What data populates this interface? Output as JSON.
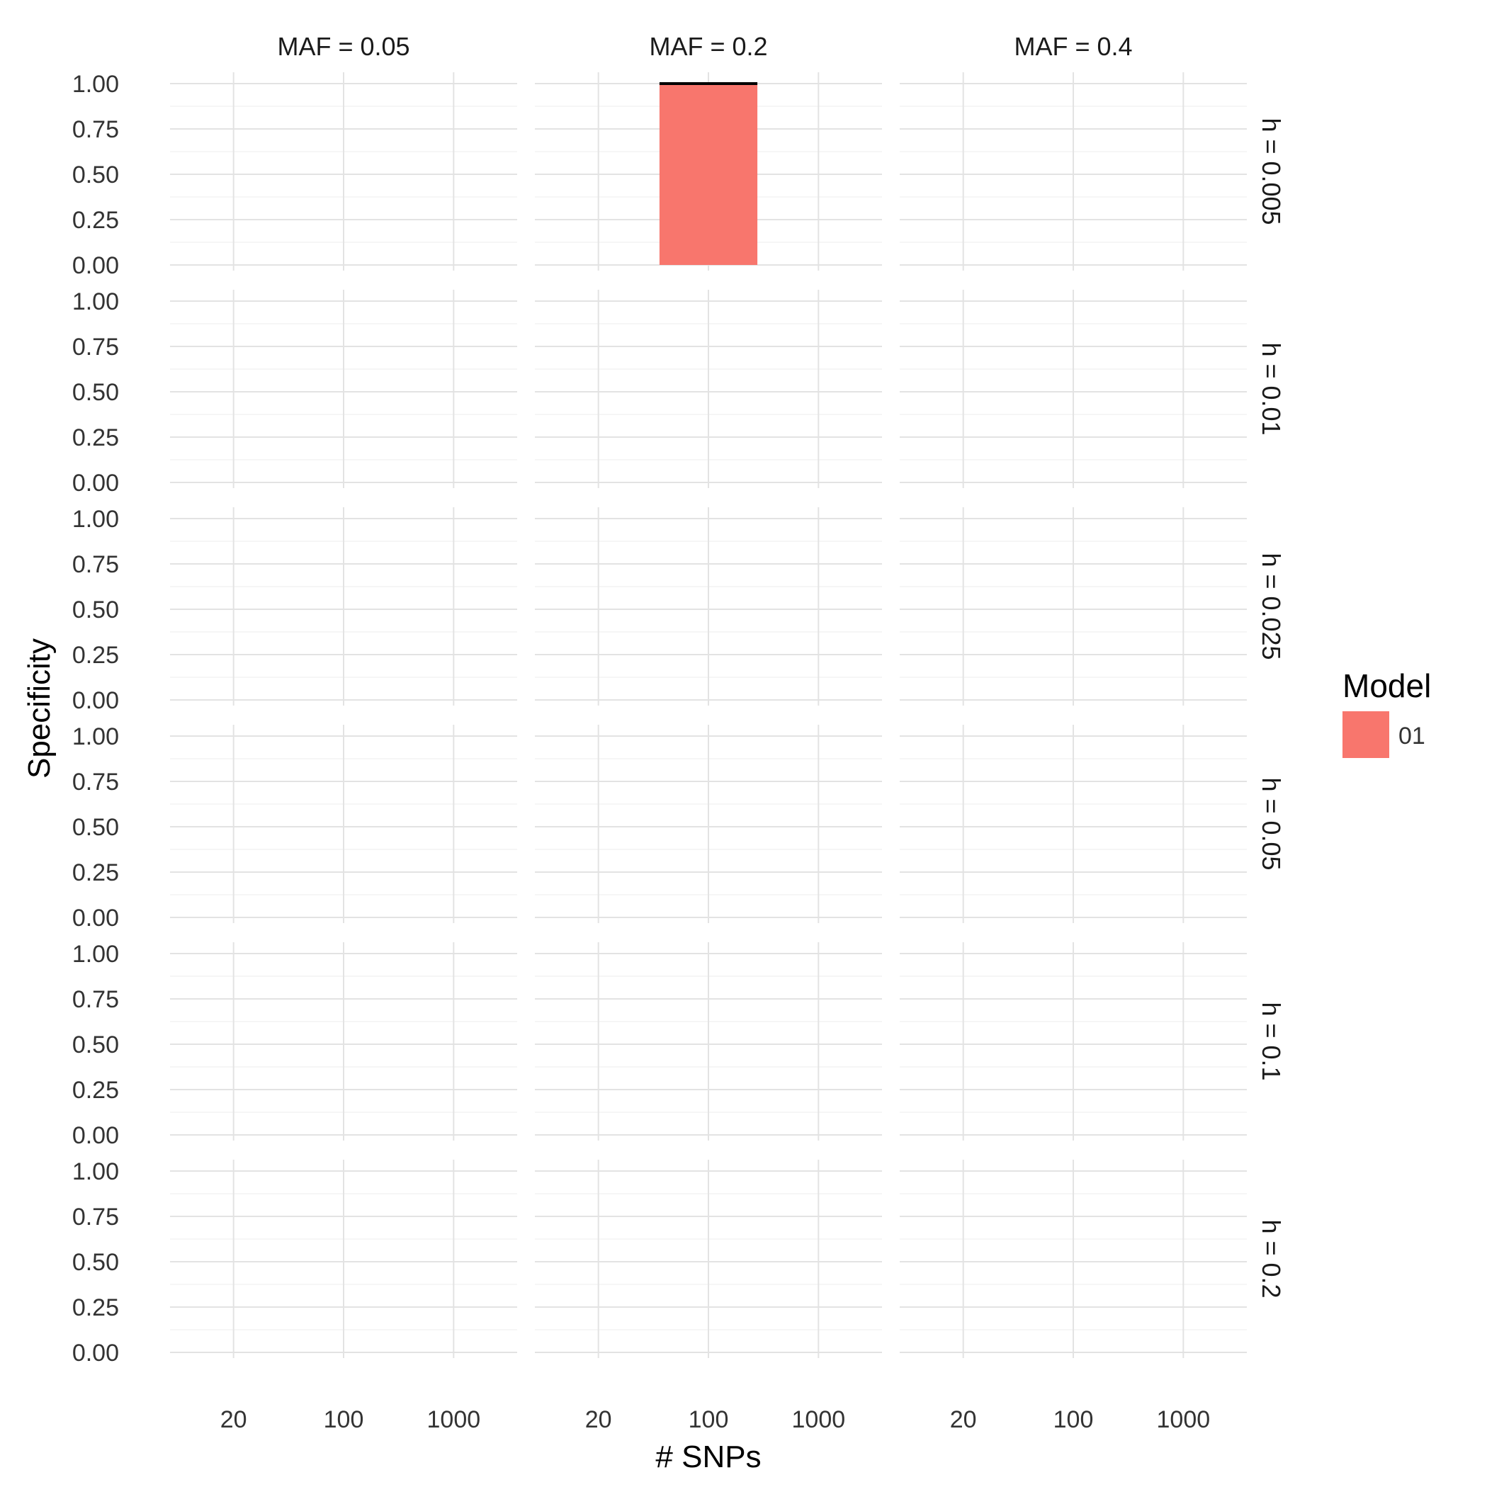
{
  "chart_data": {
    "type": "bar",
    "facet_columns": [
      "MAF = 0.05",
      "MAF = 0.2",
      "MAF = 0.4"
    ],
    "facet_rows": [
      "h = 0.005",
      "h = 0.01",
      "h = 0.025",
      "h = 0.05",
      "h = 0.1",
      "h = 0.2"
    ],
    "categories": [
      "20",
      "100",
      "1000"
    ],
    "xlabel": "# SNPs",
    "ylabel": "Specificity",
    "ylim": [
      0,
      1
    ],
    "yticks": [
      "0.00",
      "0.25",
      "0.50",
      "0.75",
      "1.00"
    ],
    "ytick_values": [
      0,
      0.25,
      0.5,
      0.75,
      1
    ],
    "legend": {
      "title": "Model",
      "position": "right",
      "entries": [
        "01"
      ]
    },
    "series": [
      {
        "name": "01",
        "color": "#F8766D",
        "points": [
          {
            "facet_column": "MAF = 0.2",
            "facet_row": "h = 0.005",
            "category": "100",
            "value": 1.0,
            "error_low": 1.0,
            "error_high": 1.0
          }
        ]
      }
    ],
    "grid": true
  }
}
